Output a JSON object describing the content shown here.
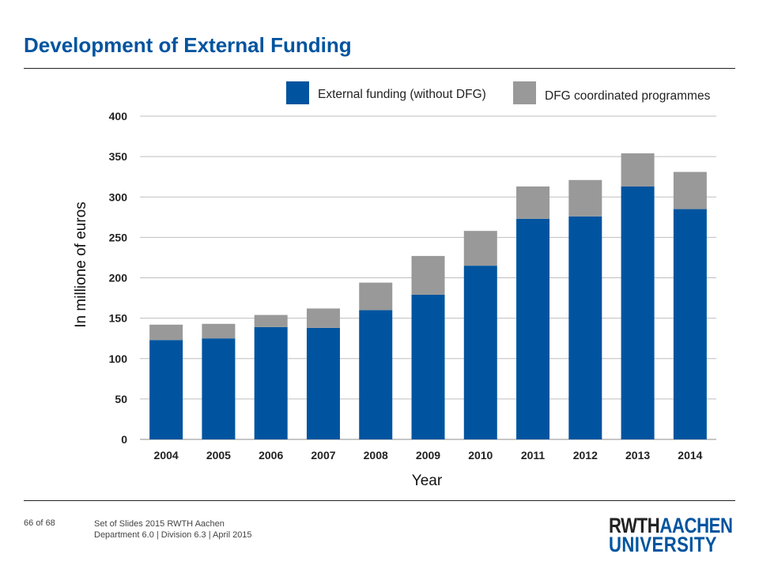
{
  "slide": {
    "title": "Development of External Funding",
    "footer": {
      "page_current": "66",
      "page_of": "of",
      "page_total": "68",
      "line1": "Set of Slides 2015 RWTH Aachen",
      "line2": "Department 6.0 | Division 6.3 | April 2015"
    },
    "logo": {
      "part1": "RWTH",
      "part2": "AACHEN",
      "part3": "UNIVERSITY"
    }
  },
  "colors": {
    "primary": "#00549f",
    "secondary": "#999999",
    "grid": "#bfbfbf"
  },
  "chart_data": {
    "type": "bar",
    "stacked": true,
    "categories": [
      "2004",
      "2005",
      "2006",
      "2007",
      "2008",
      "2009",
      "2010",
      "2011",
      "2012",
      "2013",
      "2014"
    ],
    "series": [
      {
        "name": "External funding (without DFG)",
        "color": "#00549f",
        "values": [
          123,
          125,
          139,
          138,
          160,
          179,
          215,
          273,
          276,
          313,
          285
        ]
      },
      {
        "name": "DFG coordinated programmes",
        "color": "#999999",
        "values": [
          19,
          18,
          15,
          24,
          34,
          48,
          43,
          40,
          45,
          41,
          46
        ]
      }
    ],
    "xlabel": "Year",
    "ylabel": "In millione of euros",
    "ylim": [
      0,
      400
    ],
    "yticks": [
      0,
      50,
      100,
      150,
      200,
      250,
      300,
      350,
      400
    ],
    "grid": true,
    "legend_position": "top-right"
  }
}
